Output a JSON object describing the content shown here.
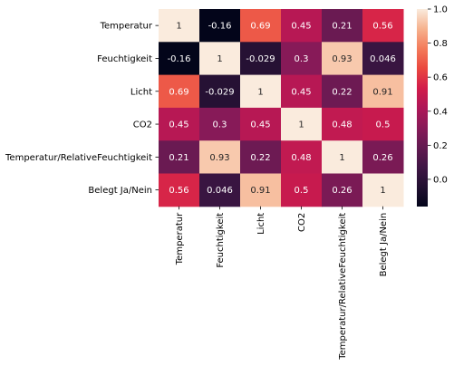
{
  "chart_data": {
    "type": "heatmap",
    "title": "",
    "xlabel": "",
    "ylabel": "",
    "row_labels": [
      "Temperatur",
      "Feuchtigkeit",
      "Licht",
      "CO2",
      "Temperatur/RelativeFeuchtigkeit",
      "Belegt Ja/Nein"
    ],
    "col_labels": [
      "Temperatur",
      "Feuchtigkeit",
      "Licht",
      "CO2",
      "Temperatur/RelativeFeuchtigkeit",
      "Belegt Ja/Nein"
    ],
    "values": [
      [
        1,
        -0.16,
        0.69,
        0.45,
        0.21,
        0.56
      ],
      [
        -0.16,
        1,
        -0.029,
        0.3,
        0.93,
        0.046
      ],
      [
        0.69,
        -0.029,
        1,
        0.45,
        0.22,
        0.91
      ],
      [
        0.45,
        0.3,
        0.45,
        1,
        0.48,
        0.5
      ],
      [
        0.21,
        0.93,
        0.22,
        0.48,
        1,
        0.26
      ],
      [
        0.56,
        0.046,
        0.91,
        0.5,
        0.26,
        1
      ]
    ],
    "value_labels": [
      [
        "1",
        "-0.16",
        "0.69",
        "0.45",
        "0.21",
        "0.56"
      ],
      [
        "-0.16",
        "1",
        "-0.029",
        "0.3",
        "0.93",
        "0.046"
      ],
      [
        "0.69",
        "-0.029",
        "1",
        "0.45",
        "0.22",
        "0.91"
      ],
      [
        "0.45",
        "0.3",
        "0.45",
        "1",
        "0.48",
        "0.5"
      ],
      [
        "0.21",
        "0.93",
        "0.22",
        "0.48",
        "1",
        "0.26"
      ],
      [
        "0.56",
        "0.046",
        "0.91",
        "0.5",
        "0.26",
        "1"
      ]
    ],
    "colorbar": {
      "colormap": "rocket",
      "vmin": -0.16,
      "vmax": 1.0,
      "ticks": [
        -0.0,
        0.2,
        0.4,
        0.6,
        0.8,
        1.0
      ],
      "tick_labels": [
        "0.0",
        "0.2",
        "0.4",
        "0.6",
        "0.8",
        "1.0"
      ]
    },
    "grid": false,
    "legend": "colorbar-right"
  }
}
